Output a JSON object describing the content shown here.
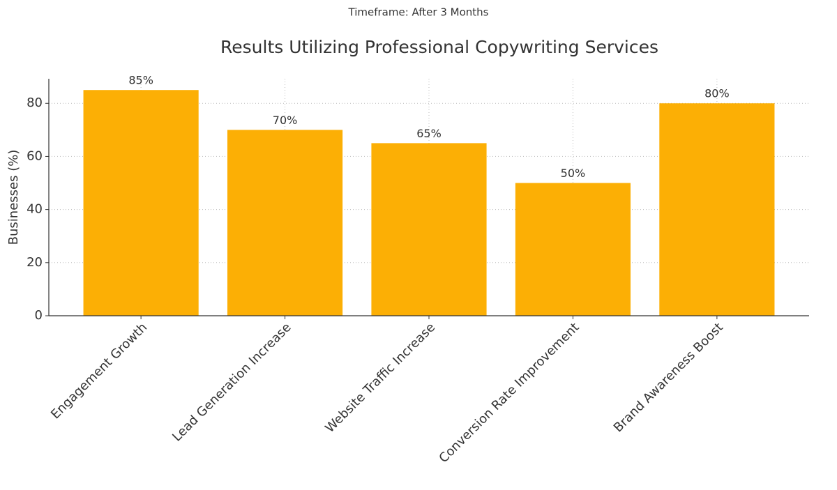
{
  "chart_data": {
    "type": "bar",
    "subtitle": "Timeframe: After 3 Months",
    "title": "Results Utilizing Professional Copywriting Services",
    "y_label": "Businesses (%)",
    "categories": [
      "Engagement Growth",
      "Lead Generation Increase",
      "Website Traffic Increase",
      "Conversion Rate Improvement",
      "Brand Awareness Boost"
    ],
    "values": [
      85,
      70,
      65,
      50,
      80
    ],
    "value_labels": [
      "85%",
      "70%",
      "65%",
      "50%",
      "80%"
    ],
    "color": "#fcaf05",
    "ylim": [
      0,
      89.25
    ],
    "yticks": [
      0,
      20,
      40,
      60,
      80
    ],
    "grid": true
  }
}
